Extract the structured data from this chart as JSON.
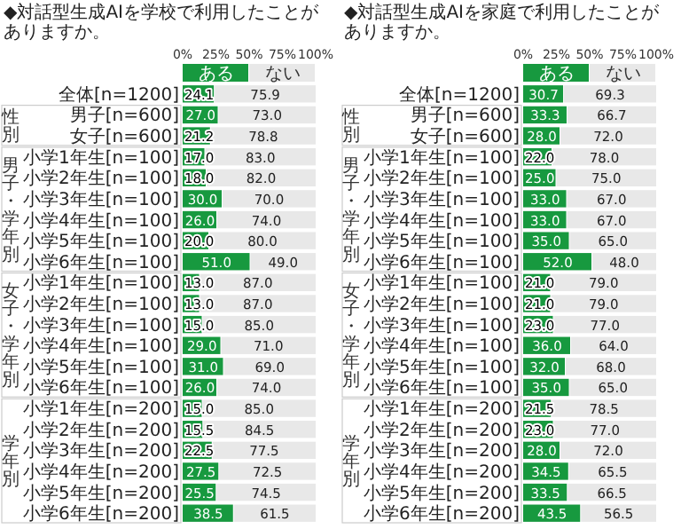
{
  "chart_data": [
    {
      "type": "bar",
      "orientation": "horizontal",
      "stacked": true,
      "title": "◆対話型生成AIを学校で利用したことがありますか。",
      "categories": [
        "全体[n=1200]",
        "男子[n=600]",
        "女子[n=600]",
        "小学1年生[n=100]",
        "小学2年生[n=100]",
        "小学3年生[n=100]",
        "小学4年生[n=100]",
        "小学5年生[n=100]",
        "小学6年生[n=100]",
        "小学1年生[n=100]",
        "小学2年生[n=100]",
        "小学3年生[n=100]",
        "小学4年生[n=100]",
        "小学5年生[n=100]",
        "小学6年生[n=100]",
        "小学1年生[n=200]",
        "小学2年生[n=200]",
        "小学3年生[n=200]",
        "小学4年生[n=200]",
        "小学5年生[n=200]",
        "小学6年生[n=200]"
      ],
      "series": [
        {
          "name": "ある",
          "color": "#17993f",
          "values": [
            24.1,
            27.0,
            21.2,
            17.0,
            18.0,
            30.0,
            26.0,
            20.0,
            51.0,
            13.0,
            13.0,
            15.0,
            29.0,
            31.0,
            26.0,
            15.0,
            15.5,
            22.5,
            27.5,
            25.5,
            38.5
          ],
          "value_labels": [
            "24.1",
            "27.0",
            "21.2",
            "17.0",
            "18.0",
            "30.0",
            "26.0",
            "20.0",
            "51.0",
            "13.0",
            "13.0",
            "15.0",
            "29.0",
            "31.0",
            "26.0",
            "15.0",
            "15.5",
            "22.5",
            "27.5",
            "25.5",
            "38.5"
          ]
        },
        {
          "name": "ない",
          "color": "#e8e8e8",
          "values": [
            75.9,
            73.0,
            78.8,
            83.0,
            82.0,
            70.0,
            74.0,
            80.0,
            49.0,
            87.0,
            87.0,
            85.0,
            71.0,
            69.0,
            74.0,
            85.0,
            84.5,
            77.5,
            72.5,
            74.5,
            61.5
          ],
          "value_labels": [
            "75.9",
            "73.0",
            "78.8",
            "83.0",
            "82.0",
            "70.0",
            "74.0",
            "80.0",
            "49.0",
            "87.0",
            "87.0",
            "85.0",
            "71.0",
            "69.0",
            "74.0",
            "85.0",
            "84.5",
            "77.5",
            "72.5",
            "74.5",
            "61.5"
          ]
        }
      ],
      "xlim": [
        0,
        100
      ],
      "xticks": [
        {
          "value": 0,
          "label": "0%"
        },
        {
          "value": 25,
          "label": "25%"
        },
        {
          "value": 50,
          "label": "50%"
        },
        {
          "value": 75,
          "label": "75%"
        },
        {
          "value": 100,
          "label": "100%"
        }
      ],
      "legend": "top",
      "annotations": [
        "性別",
        "男子・学年別",
        "女子・学年別",
        "学年別"
      ]
    },
    {
      "type": "bar",
      "orientation": "horizontal",
      "stacked": true,
      "title": "◆対話型生成AIを家庭で利用したことがありますか。",
      "categories": [
        "全体[n=1200]",
        "男子[n=600]",
        "女子[n=600]",
        "小学1年生[n=100]",
        "小学2年生[n=100]",
        "小学3年生[n=100]",
        "小学4年生[n=100]",
        "小学5年生[n=100]",
        "小学6年生[n=100]",
        "小学1年生[n=100]",
        "小学2年生[n=100]",
        "小学3年生[n=100]",
        "小学4年生[n=100]",
        "小学5年生[n=100]",
        "小学6年生[n=100]",
        "小学1年生[n=200]",
        "小学2年生[n=200]",
        "小学3年生[n=200]",
        "小学4年生[n=200]",
        "小学5年生[n=200]",
        "小学6年生[n=200]"
      ],
      "series": [
        {
          "name": "ある",
          "color": "#17993f",
          "values": [
            30.7,
            33.3,
            28.0,
            22.0,
            25.0,
            33.0,
            33.0,
            35.0,
            52.0,
            21.0,
            21.0,
            23.0,
            36.0,
            32.0,
            35.0,
            21.5,
            23.0,
            28.0,
            34.5,
            33.5,
            43.5
          ],
          "value_labels": [
            "30.7",
            "33.3",
            "28.0",
            "22.0",
            "25.0",
            "33.0",
            "33.0",
            "35.0",
            "52.0",
            "21.0",
            "21.0",
            "23.0",
            "36.0",
            "32.0",
            "35.0",
            "21.5",
            "23.0",
            "28.0",
            "34.5",
            "33.5",
            "43.5"
          ]
        },
        {
          "name": "ない",
          "color": "#e8e8e8",
          "values": [
            69.3,
            66.7,
            72.0,
            78.0,
            75.0,
            67.0,
            67.0,
            65.0,
            48.0,
            79.0,
            79.0,
            77.0,
            64.0,
            68.0,
            65.0,
            78.5,
            77.0,
            72.0,
            65.5,
            66.5,
            56.5
          ],
          "value_labels": [
            "69.3",
            "66.7",
            "72.0",
            "78.0",
            "75.0",
            "67.0",
            "67.0",
            "65.0",
            "48.0",
            "79.0",
            "79.0",
            "77.0",
            "64.0",
            "68.0",
            "65.0",
            "78.5",
            "77.0",
            "72.0",
            "65.5",
            "66.5",
            "56.5"
          ]
        }
      ],
      "xlim": [
        0,
        100
      ],
      "xticks": [
        {
          "value": 0,
          "label": "0%"
        },
        {
          "value": 25,
          "label": "25%"
        },
        {
          "value": 50,
          "label": "50%"
        },
        {
          "value": 75,
          "label": "75%"
        },
        {
          "value": 100,
          "label": "100%"
        }
      ],
      "legend": "top",
      "annotations": [
        "性別",
        "男子・学年別",
        "女子・学年別",
        "学年別"
      ]
    }
  ]
}
